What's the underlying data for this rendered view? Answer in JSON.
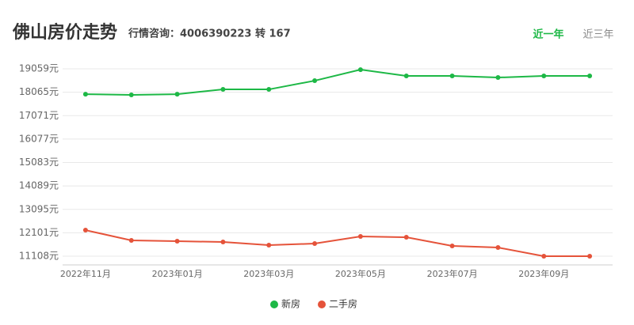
{
  "header": {
    "title": "佛山房价走势",
    "subtitle": "行情咨询：4006390223 转 167",
    "tabs": [
      "近一年",
      "近三年"
    ]
  },
  "chart_data": {
    "type": "line",
    "categories": [
      "2022年11月",
      null,
      "2023年01月",
      null,
      "2023年03月",
      null,
      "2023年05月",
      null,
      "2023年07月",
      null,
      "2023年09月",
      null
    ],
    "series": [
      {
        "name": "新房",
        "color": "#1db846",
        "values": [
          17985,
          17952,
          17985,
          18187,
          18187,
          18556,
          19025,
          18757,
          18757,
          18690,
          18757,
          18757
        ]
      },
      {
        "name": "二手房",
        "color": "#e5533a",
        "values": [
          12215,
          11779,
          11746,
          11712,
          11578,
          11645,
          11947,
          11913,
          11544,
          11477,
          11108,
          11108
        ]
      }
    ],
    "ylim": [
      10740,
      19430
    ],
    "yticks": [
      {
        "value": 11108,
        "label": "11108元"
      },
      {
        "value": 12101,
        "label": "12101元"
      },
      {
        "value": 13095,
        "label": "13095元"
      },
      {
        "value": 14089,
        "label": "14089元"
      },
      {
        "value": 15083,
        "label": "15083元"
      },
      {
        "value": 16077,
        "label": "16077元"
      },
      {
        "value": 17071,
        "label": "17071元"
      },
      {
        "value": 18065,
        "label": "18065元"
      },
      {
        "value": 19059,
        "label": "19059元"
      }
    ],
    "grid": true
  }
}
